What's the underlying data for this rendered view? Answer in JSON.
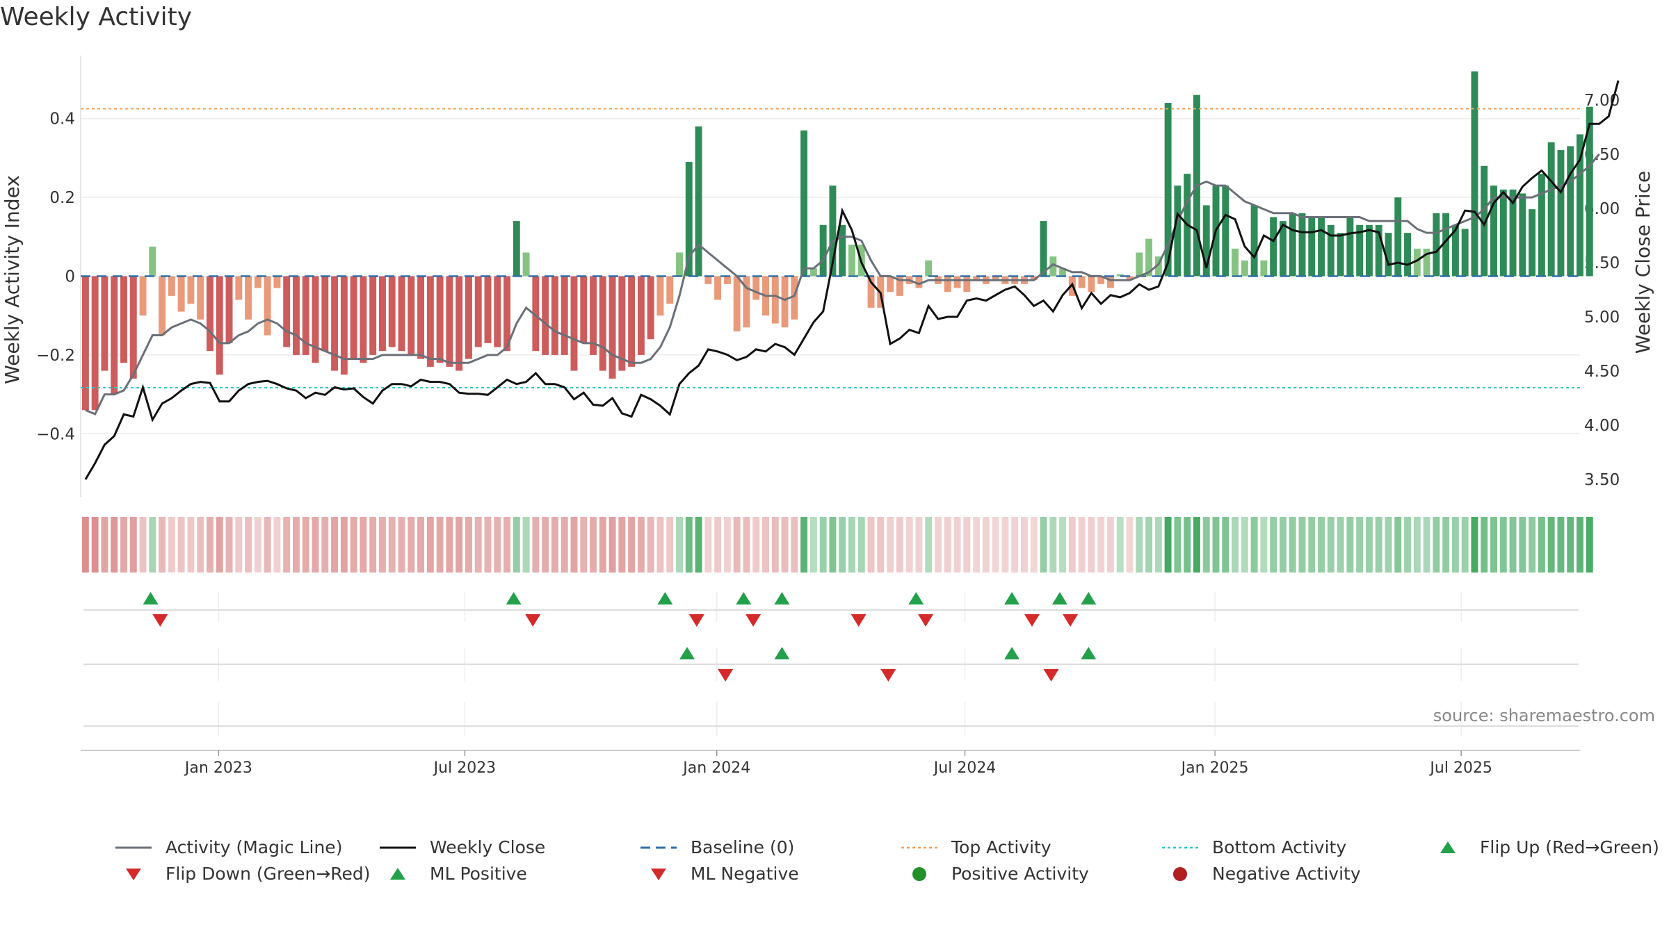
{
  "title": "Weekly Activity",
  "source": "source: sharemaestro.com",
  "legend": [
    {
      "key": "magic_line",
      "label": "Activity (Magic Line)",
      "symbol": "line",
      "color": "#6b7078"
    },
    {
      "key": "weekly_close",
      "label": "Weekly Close",
      "symbol": "line",
      "color": "#111111"
    },
    {
      "key": "baseline",
      "label": "Baseline (0)",
      "symbol": "dash",
      "color": "#2e6fa8"
    },
    {
      "key": "top",
      "label": "Top Activity",
      "symbol": "dot-line",
      "color": "#f0a050"
    },
    {
      "key": "bottom",
      "label": "Bottom Activity",
      "symbol": "dot-line",
      "color": "#30c8c8"
    },
    {
      "key": "flip_up",
      "label": "Flip Up (Red→Green)",
      "symbol": "tri-up",
      "color": "#22a04a"
    },
    {
      "key": "flip_down",
      "label": "Flip Down (Green→Red)",
      "symbol": "tri-down",
      "color": "#d42a2a"
    },
    {
      "key": "ml_pos",
      "label": "ML Positive",
      "symbol": "tri-up",
      "color": "#22a04a"
    },
    {
      "key": "ml_neg",
      "label": "ML Negative",
      "symbol": "tri-down",
      "color": "#d42a2a"
    },
    {
      "key": "pos_act",
      "label": "Positive Activity",
      "symbol": "circle",
      "color": "#22902a"
    },
    {
      "key": "neg_act",
      "label": "Negative Activity",
      "symbol": "circle",
      "color": "#b02020"
    }
  ],
  "chart_data": {
    "type": "bar",
    "title": "Weekly Activity",
    "ylabel_left": "Weekly Activity Index",
    "ylabel_right": "Weekly Close Price",
    "ylim_left": [
      -0.56,
      0.56
    ],
    "yticks_left": [
      -0.4,
      -0.2,
      0,
      0.2,
      0.4
    ],
    "ytick_labels_left": [
      "−0.4",
      "−0.2",
      "0",
      "0.2",
      "0.4"
    ],
    "ylim_right": [
      3.34,
      7.41
    ],
    "yticks_right": [
      3.5,
      4.0,
      4.5,
      5.0,
      5.5,
      6.0,
      6.5,
      7.0
    ],
    "ytick_labels_right": [
      "3.50",
      "4.00",
      "4.50",
      "5.00",
      "5.50",
      "6.00",
      "6.50",
      "7.00"
    ],
    "x_range_weeks": [
      0,
      156.5
    ],
    "xtick_weeks": [
      14.4,
      40.1,
      66.4,
      92.3,
      118.4,
      144.1
    ],
    "xtick_labels": [
      "Jan 2023",
      "Jul 2023",
      "Jan 2024",
      "Jul 2024",
      "Jan 2025",
      "Jul 2025"
    ],
    "top_activity": 0.425,
    "bottom_activity": -0.283,
    "baseline": 0,
    "activity": [
      -0.34,
      -0.34,
      -0.24,
      -0.3,
      -0.22,
      -0.26,
      -0.1,
      0.075,
      -0.15,
      -0.05,
      -0.09,
      -0.07,
      -0.11,
      -0.19,
      -0.25,
      -0.17,
      -0.06,
      -0.11,
      -0.03,
      -0.15,
      -0.03,
      -0.18,
      -0.2,
      -0.2,
      -0.22,
      -0.19,
      -0.24,
      -0.25,
      -0.21,
      -0.22,
      -0.2,
      -0.19,
      -0.18,
      -0.19,
      -0.2,
      -0.21,
      -0.23,
      -0.22,
      -0.23,
      -0.24,
      -0.21,
      -0.18,
      -0.17,
      -0.18,
      -0.19,
      0.14,
      0.06,
      -0.19,
      -0.2,
      -0.2,
      -0.2,
      -0.24,
      -0.17,
      -0.2,
      -0.24,
      -0.26,
      -0.24,
      -0.23,
      -0.2,
      -0.16,
      -0.1,
      -0.07,
      0.06,
      0.29,
      0.38,
      -0.02,
      -0.06,
      -0.02,
      -0.14,
      -0.13,
      -0.06,
      -0.1,
      -0.12,
      -0.13,
      -0.11,
      0.37,
      0.02,
      0.13,
      0.23,
      0.13,
      0.08,
      0.08,
      -0.08,
      -0.08,
      -0.04,
      -0.05,
      -0.02,
      -0.03,
      0.04,
      -0.02,
      -0.04,
      -0.03,
      -0.04,
      -0.01,
      -0.02,
      -0.01,
      -0.02,
      -0.02,
      -0.02,
      -0.01,
      0.14,
      0.05,
      0.02,
      -0.05,
      -0.03,
      -0.04,
      -0.02,
      -0.03,
      0.005,
      -0.01,
      0.06,
      0.095,
      0.05,
      0.44,
      0.23,
      0.26,
      0.46,
      0.18,
      0.23,
      0.23,
      0.07,
      0.04,
      0.18,
      0.04,
      0.15,
      0.14,
      0.16,
      0.16,
      0.15,
      0.15,
      0.13,
      0.11,
      0.15,
      0.13,
      0.13,
      0.13,
      0.11,
      0.2,
      0.11,
      0.07,
      0.07,
      0.16,
      0.16,
      0.13,
      0.12,
      0.52,
      0.28,
      0.23,
      0.22,
      0.22,
      0.21,
      0.17,
      0.26,
      0.34,
      0.32,
      0.33,
      0.36,
      0.43
    ],
    "magic_line": [
      -0.34,
      -0.35,
      -0.3,
      -0.3,
      -0.29,
      -0.25,
      -0.2,
      -0.15,
      -0.15,
      -0.13,
      -0.12,
      -0.11,
      -0.12,
      -0.14,
      -0.17,
      -0.17,
      -0.15,
      -0.14,
      -0.12,
      -0.11,
      -0.12,
      -0.14,
      -0.15,
      -0.17,
      -0.18,
      -0.19,
      -0.2,
      -0.21,
      -0.21,
      -0.21,
      -0.21,
      -0.2,
      -0.2,
      -0.2,
      -0.2,
      -0.2,
      -0.21,
      -0.21,
      -0.22,
      -0.22,
      -0.22,
      -0.21,
      -0.2,
      -0.2,
      -0.18,
      -0.12,
      -0.08,
      -0.1,
      -0.12,
      -0.14,
      -0.15,
      -0.16,
      -0.17,
      -0.17,
      -0.18,
      -0.2,
      -0.21,
      -0.22,
      -0.22,
      -0.21,
      -0.18,
      -0.13,
      -0.05,
      0.05,
      0.08,
      0.06,
      0.04,
      0.02,
      0.0,
      -0.03,
      -0.04,
      -0.05,
      -0.05,
      -0.06,
      -0.05,
      0.02,
      0.02,
      0.04,
      0.09,
      0.1,
      0.1,
      0.09,
      0.04,
      0.0,
      0.0,
      -0.01,
      -0.01,
      -0.02,
      -0.01,
      -0.01,
      -0.01,
      -0.01,
      -0.01,
      -0.01,
      -0.01,
      -0.01,
      -0.01,
      -0.01,
      -0.01,
      -0.01,
      0.01,
      0.03,
      0.02,
      0.01,
      0.01,
      0.0,
      0.0,
      -0.01,
      -0.01,
      -0.01,
      0.0,
      0.01,
      0.03,
      0.08,
      0.14,
      0.19,
      0.23,
      0.24,
      0.23,
      0.23,
      0.21,
      0.19,
      0.18,
      0.17,
      0.16,
      0.16,
      0.16,
      0.15,
      0.15,
      0.15,
      0.15,
      0.15,
      0.15,
      0.15,
      0.14,
      0.14,
      0.14,
      0.14,
      0.14,
      0.12,
      0.11,
      0.11,
      0.12,
      0.13,
      0.14,
      0.15,
      0.17,
      0.2,
      0.2,
      0.2,
      0.2,
      0.2,
      0.21,
      0.22,
      0.23,
      0.24,
      0.26,
      0.28,
      0.31
    ],
    "weekly_close": [
      3.5,
      3.65,
      3.82,
      3.9,
      4.1,
      4.08,
      4.35,
      4.05,
      4.2,
      4.25,
      4.32,
      4.38,
      4.4,
      4.39,
      4.22,
      4.22,
      4.32,
      4.38,
      4.4,
      4.41,
      4.38,
      4.34,
      4.32,
      4.25,
      4.3,
      4.28,
      4.35,
      4.33,
      4.34,
      4.26,
      4.2,
      4.32,
      4.38,
      4.38,
      4.36,
      4.42,
      4.4,
      4.4,
      4.38,
      4.3,
      4.29,
      4.29,
      4.28,
      4.35,
      4.42,
      4.38,
      4.4,
      4.48,
      4.38,
      4.38,
      4.35,
      4.24,
      4.3,
      4.19,
      4.18,
      4.25,
      4.11,
      4.08,
      4.28,
      4.24,
      4.18,
      4.1,
      4.38,
      4.48,
      4.55,
      4.7,
      4.68,
      4.65,
      4.6,
      4.63,
      4.7,
      4.68,
      4.75,
      4.72,
      4.65,
      4.8,
      4.95,
      5.05,
      5.5,
      5.98,
      5.8,
      5.5,
      5.32,
      5.22,
      4.75,
      4.8,
      4.88,
      4.85,
      5.1,
      4.98,
      5.0,
      5.0,
      5.15,
      5.17,
      5.15,
      5.2,
      5.25,
      5.28,
      5.2,
      5.1,
      5.15,
      5.05,
      5.2,
      5.3,
      5.08,
      5.22,
      5.12,
      5.2,
      5.18,
      5.22,
      5.3,
      5.25,
      5.28,
      5.5,
      5.95,
      5.85,
      5.8,
      5.45,
      5.8,
      5.94,
      5.9,
      5.65,
      5.55,
      5.75,
      5.7,
      5.85,
      5.8,
      5.78,
      5.78,
      5.8,
      5.75,
      5.75,
      5.77,
      5.78,
      5.8,
      5.78,
      5.48,
      5.5,
      5.48,
      5.52,
      5.58,
      5.6,
      5.7,
      5.8,
      5.98,
      5.97,
      5.85,
      6.05,
      6.15,
      6.05,
      6.2,
      6.28,
      6.35,
      6.25,
      6.15,
      6.32,
      6.45,
      6.78,
      6.78,
      6.85,
      7.18
    ],
    "strip_activity": [
      -0.34,
      -0.34,
      -0.24,
      -0.3,
      -0.22,
      -0.26,
      -0.1,
      0.075,
      -0.15,
      -0.05,
      -0.09,
      -0.07,
      -0.11,
      -0.19,
      -0.25,
      -0.17,
      -0.06,
      -0.11,
      -0.03,
      -0.15,
      -0.03,
      -0.18,
      -0.2,
      -0.2,
      -0.22,
      -0.19,
      -0.24,
      -0.25,
      -0.21,
      -0.22,
      -0.2,
      -0.19,
      -0.18,
      -0.19,
      -0.2,
      -0.21,
      -0.23,
      -0.22,
      -0.23,
      -0.24,
      -0.21,
      -0.18,
      -0.17,
      -0.18,
      -0.19,
      0.14,
      0.06,
      -0.19,
      -0.2,
      -0.2,
      -0.2,
      -0.24,
      -0.17,
      -0.2,
      -0.24,
      -0.26,
      -0.24,
      -0.23,
      -0.2,
      -0.16,
      -0.1,
      -0.07,
      0.06,
      0.29,
      0.38,
      -0.02,
      -0.06,
      -0.02,
      -0.14,
      -0.13,
      -0.06,
      -0.1,
      -0.12,
      -0.13,
      -0.11,
      0.37,
      0.02,
      0.13,
      0.23,
      0.13,
      0.08,
      0.08,
      -0.08,
      -0.08,
      -0.04,
      -0.05,
      -0.02,
      -0.03,
      0.04,
      -0.02,
      -0.04,
      -0.03,
      -0.04,
      -0.01,
      -0.02,
      -0.01,
      -0.02,
      -0.02,
      -0.02,
      -0.01,
      0.14,
      0.05,
      0.02,
      -0.05,
      -0.03,
      -0.04,
      -0.02,
      -0.03,
      0.005,
      -0.01,
      0.06,
      0.095,
      0.05,
      0.44,
      0.23,
      0.26,
      0.46,
      0.18,
      0.23,
      0.23,
      0.07,
      0.04,
      0.18,
      0.04,
      0.15,
      0.14,
      0.16,
      0.16,
      0.15,
      0.15,
      0.13,
      0.11,
      0.15,
      0.13,
      0.13,
      0.13,
      0.11,
      0.2,
      0.11,
      0.07,
      0.07,
      0.16,
      0.16,
      0.13,
      0.12,
      0.52,
      0.28,
      0.23,
      0.22,
      0.22,
      0.21,
      0.17,
      0.26,
      0.34,
      0.32,
      0.33,
      0.36,
      0.43
    ],
    "flip_up_weeks": [
      7.3,
      45.2,
      61.0,
      69.2,
      73.2,
      87.2,
      97.2,
      102.2,
      105.2
    ],
    "flip_down_weeks": [
      8.3,
      47.2,
      64.3,
      70.2,
      81.2,
      88.2,
      99.3,
      103.3
    ],
    "ml_positive_weeks": [
      63.3,
      73.2,
      97.2,
      105.2
    ],
    "ml_negative_weeks": [
      67.3,
      84.3,
      101.3
    ]
  }
}
